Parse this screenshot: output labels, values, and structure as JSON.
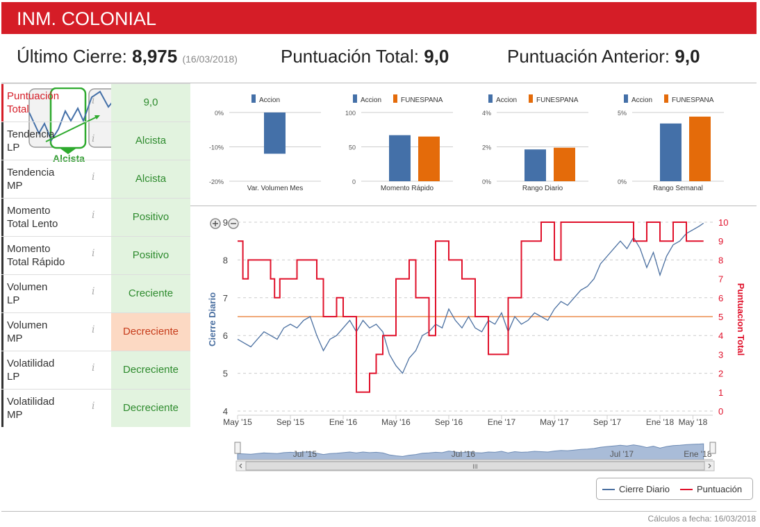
{
  "header": {
    "title": "INM. COLONIAL"
  },
  "summary": {
    "last_close_label": "Último Cierre:",
    "last_close_value": "8,975",
    "last_close_date": "(16/03/2018)",
    "total_label": "Puntuación Total:",
    "total_value": "9,0",
    "prev_label": "Puntuación Anterior:",
    "prev_value": "9,0"
  },
  "trend": {
    "label": "Alcista"
  },
  "rows": [
    {
      "label_line1": "Puntuación",
      "label_line2": "Total",
      "value": "9,0",
      "status": "positive"
    },
    {
      "label_line1": "Tendencia",
      "label_line2": "LP",
      "value": "Alcista",
      "status": "positive"
    },
    {
      "label_line1": "Tendencia",
      "label_line2": "MP",
      "value": "Alcista",
      "status": "positive"
    },
    {
      "label_line1": "Momento",
      "label_line2": "Total Lento",
      "value": "Positivo",
      "status": "positive"
    },
    {
      "label_line1": "Momento",
      "label_line2": "Total Rápido",
      "value": "Positivo",
      "status": "positive"
    },
    {
      "label_line1": "Volumen",
      "label_line2": "LP",
      "value": "Creciente",
      "status": "positive"
    },
    {
      "label_line1": "Volumen",
      "label_line2": "MP",
      "value": "Decreciente",
      "status": "negative"
    },
    {
      "label_line1": "Volatilidad",
      "label_line2": "LP",
      "value": "Decreciente",
      "status": "positive"
    },
    {
      "label_line1": "Volatilidad",
      "label_line2": "MP",
      "value": "Decreciente",
      "status": "positive"
    }
  ],
  "info_glyph": "i",
  "colors": {
    "brand": "#d51d27",
    "accion": "#4470a8",
    "funespana": "#e46b0a",
    "close_line": "#4a6fa0",
    "score_line": "#e0102a",
    "mean_line": "#f0a878"
  },
  "chart_data": [
    {
      "type": "bar",
      "title": "Var. Volumen Mes",
      "legend": [
        "Accion"
      ],
      "categories": [
        "Var. Volumen Mes"
      ],
      "series": [
        {
          "name": "Accion",
          "values": [
            -12
          ]
        }
      ],
      "ylim": [
        -20,
        0
      ],
      "ticks": [
        "0%",
        "-10%",
        "-20%"
      ],
      "tick_values": [
        0,
        -10,
        -20
      ]
    },
    {
      "type": "bar",
      "title": "Momento Rápido",
      "legend": [
        "Accion",
        "FUNESPANA"
      ],
      "categories": [
        "Momento Rápido"
      ],
      "series": [
        {
          "name": "Accion",
          "values": [
            67
          ]
        },
        {
          "name": "FUNESPANA",
          "values": [
            65
          ]
        }
      ],
      "ylim": [
        0,
        100
      ],
      "ticks": [
        "100",
        "50",
        "0"
      ],
      "tick_values": [
        100,
        50,
        0
      ]
    },
    {
      "type": "bar",
      "title": "Rango Diario",
      "legend": [
        "Accion",
        "FUNESPANA"
      ],
      "categories": [
        "Rango Diario"
      ],
      "series": [
        {
          "name": "Accion",
          "values": [
            1.85
          ]
        },
        {
          "name": "FUNESPANA",
          "values": [
            1.95
          ]
        }
      ],
      "ylim": [
        0,
        4
      ],
      "ticks": [
        "4%",
        "2%",
        "0%"
      ],
      "tick_values": [
        4,
        2,
        0
      ]
    },
    {
      "type": "bar",
      "title": "Rango Semanal",
      "legend": [
        "Accion",
        "FUNESPANA"
      ],
      "categories": [
        "Rango Semanal"
      ],
      "series": [
        {
          "name": "Accion",
          "values": [
            4.2
          ]
        },
        {
          "name": "FUNESPANA",
          "values": [
            4.7
          ]
        }
      ],
      "ylim": [
        0,
        5
      ],
      "ticks": [
        "5%",
        "0%"
      ],
      "tick_values": [
        5,
        0
      ]
    },
    {
      "type": "line",
      "title": "",
      "ylabel": "Cierre Diario",
      "y2label": "Puntuacion Total",
      "ylim": [
        4,
        9
      ],
      "y2lim": [
        0,
        10
      ],
      "yticks": [
        4,
        5,
        6,
        7,
        8,
        9
      ],
      "y2ticks": [
        0,
        1,
        2,
        3,
        4,
        5,
        6,
        7,
        8,
        9,
        10
      ],
      "xlim": [
        0,
        36
      ],
      "x_tick_labels": [
        "May '15",
        "Sep '15",
        "Ene '16",
        "May '16",
        "Sep '16",
        "Ene '17",
        "May '17",
        "Sep '17",
        "Ene '18",
        "May '18"
      ],
      "x_tick_values": [
        0,
        4,
        8,
        12,
        16,
        20,
        24,
        28,
        32,
        34.5
      ],
      "mean_line_value": 6.5,
      "series": [
        {
          "name": "Cierre Diario",
          "x": [
            0,
            0.5,
            1,
            1.5,
            2,
            2.5,
            3,
            3.5,
            4,
            4.5,
            5,
            5.5,
            6,
            6.5,
            7,
            7.5,
            8,
            8.5,
            9,
            9.5,
            10,
            10.5,
            11,
            11.5,
            12,
            12.5,
            13,
            13.5,
            14,
            14.5,
            15,
            15.5,
            16,
            16.5,
            17,
            17.5,
            18,
            18.5,
            19,
            19.5,
            20,
            20.5,
            21,
            21.5,
            22,
            22.5,
            23,
            23.5,
            24,
            24.5,
            25,
            25.5,
            26,
            26.5,
            27,
            27.5,
            28,
            28.5,
            29,
            29.5,
            30,
            30.5,
            31,
            31.5,
            32,
            32.5,
            33,
            33.5,
            34,
            34.5,
            35,
            35.3
          ],
          "values": [
            5.9,
            5.8,
            5.7,
            5.9,
            6.1,
            6.0,
            5.9,
            6.2,
            6.3,
            6.2,
            6.4,
            6.5,
            6.0,
            5.6,
            5.9,
            6.0,
            6.2,
            6.4,
            6.1,
            6.4,
            6.2,
            6.3,
            6.1,
            5.5,
            5.2,
            5.0,
            5.4,
            5.6,
            6.0,
            6.1,
            6.3,
            6.2,
            6.7,
            6.4,
            6.2,
            6.5,
            6.2,
            6.1,
            6.4,
            6.3,
            6.6,
            6.1,
            6.5,
            6.3,
            6.4,
            6.6,
            6.5,
            6.4,
            6.7,
            6.9,
            6.8,
            7.0,
            7.2,
            7.3,
            7.5,
            7.9,
            8.1,
            8.3,
            8.5,
            8.3,
            8.6,
            8.3,
            7.8,
            8.2,
            7.6,
            8.1,
            8.4,
            8.5,
            8.7,
            8.8,
            8.9,
            8.975
          ]
        },
        {
          "name": "Puntuación",
          "steps": [
            [
              0,
              9
            ],
            [
              0.4,
              7
            ],
            [
              0.8,
              8
            ],
            [
              2.5,
              7
            ],
            [
              2.8,
              6
            ],
            [
              3.2,
              7
            ],
            [
              4.5,
              8
            ],
            [
              6,
              7
            ],
            [
              6.5,
              5
            ],
            [
              7.5,
              6
            ],
            [
              8,
              5
            ],
            [
              9,
              1
            ],
            [
              10,
              2
            ],
            [
              10.5,
              3
            ],
            [
              11,
              4
            ],
            [
              12,
              7
            ],
            [
              13,
              8
            ],
            [
              13.5,
              6
            ],
            [
              14.5,
              4
            ],
            [
              15,
              9
            ],
            [
              16,
              8
            ],
            [
              17,
              7
            ],
            [
              18,
              5
            ],
            [
              19,
              3
            ],
            [
              20.5,
              6
            ],
            [
              21.5,
              9
            ],
            [
              23,
              10
            ],
            [
              24,
              8
            ],
            [
              24.5,
              10
            ],
            [
              26,
              10
            ],
            [
              30,
              9
            ],
            [
              31,
              10
            ],
            [
              32,
              9
            ],
            [
              33,
              10
            ],
            [
              34,
              9
            ],
            [
              35,
              9
            ]
          ]
        }
      ],
      "legend": [
        "Cierre Diario",
        "Puntuación"
      ],
      "navigator_labels": [
        "Jul '15",
        "Jul '16",
        "Jul '17",
        "Ene '18"
      ],
      "navigator_scroll_glyph": "III"
    }
  ],
  "footer": {
    "text": "Cálculos a fecha: 16/03/2018"
  }
}
